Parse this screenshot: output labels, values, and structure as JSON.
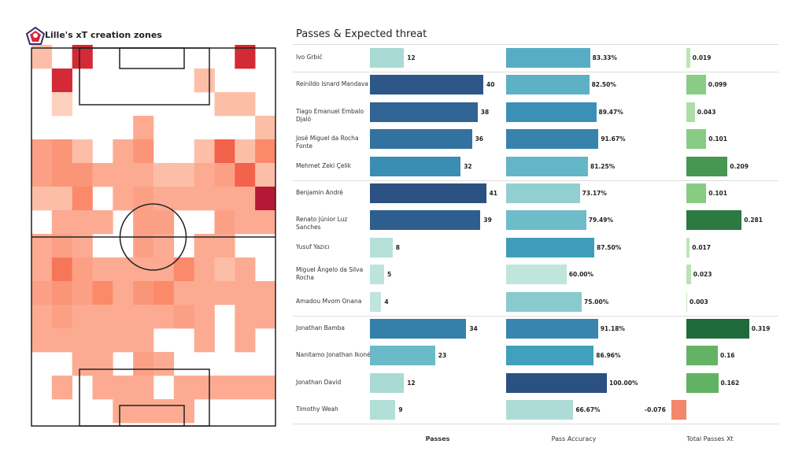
{
  "left_title": "Lille's xT creation zones",
  "right_title": "Passes & Expected threat",
  "columns": {
    "passes": "Passes",
    "accuracy": "Pass Accuracy",
    "xt": "Total Passes Xt"
  },
  "colors": {
    "negative_xt": "#f4876b",
    "pitch_lines": "#222222"
  },
  "chart_data": [
    {
      "type": "heatmap",
      "title": "Lille's xT creation zones",
      "colormap": "Reds",
      "grid_rows": 16,
      "grid_cols": 12,
      "values": [
        [
          0.3,
          0,
          0.85,
          0,
          0,
          0,
          0,
          0,
          0,
          0,
          0.85,
          0
        ],
        [
          0,
          0.85,
          0,
          0,
          0,
          0,
          0,
          0,
          0.3,
          0,
          0,
          0
        ],
        [
          0,
          0.25,
          0,
          0,
          0,
          0,
          0,
          0,
          0,
          0.3,
          0.3,
          0
        ],
        [
          0,
          0,
          0,
          0,
          0,
          0.35,
          0,
          0,
          0,
          0,
          0,
          0.3
        ],
        [
          0.4,
          0.45,
          0.3,
          0,
          0.35,
          0.45,
          0,
          0,
          0.3,
          0.6,
          0.3,
          0.5
        ],
        [
          0.4,
          0.45,
          0.45,
          0.35,
          0.35,
          0.35,
          0.3,
          0.3,
          0.35,
          0.4,
          0.6,
          0.3
        ],
        [
          0.3,
          0.3,
          0.5,
          0,
          0.35,
          0.4,
          0.35,
          0.35,
          0.35,
          0.35,
          0.35,
          0.95
        ],
        [
          0,
          0.35,
          0.35,
          0.35,
          0,
          0.4,
          0.4,
          0,
          0,
          0.4,
          0.35,
          0.35
        ],
        [
          0.35,
          0.4,
          0.35,
          0,
          0,
          0.4,
          0.35,
          0,
          0.35,
          0.35,
          0,
          0
        ],
        [
          0.35,
          0.55,
          0.4,
          0.35,
          0.35,
          0.35,
          0.35,
          0.5,
          0.35,
          0.3,
          0.35,
          0
        ],
        [
          0.4,
          0.45,
          0.4,
          0.5,
          0.35,
          0.45,
          0.5,
          0.35,
          0.35,
          0.35,
          0.35,
          0.35
        ],
        [
          0.35,
          0.4,
          0.35,
          0.35,
          0.35,
          0.35,
          0.35,
          0.4,
          0.35,
          0,
          0.35,
          0.35
        ],
        [
          0.35,
          0.35,
          0.35,
          0.35,
          0.35,
          0.35,
          0,
          0,
          0.35,
          0,
          0.35,
          0
        ],
        [
          0,
          0,
          0.35,
          0.35,
          0,
          0.4,
          0.35,
          0,
          0,
          0,
          0,
          0
        ],
        [
          0,
          0.35,
          0,
          0.35,
          0.35,
          0.35,
          0,
          0.35,
          0.35,
          0.35,
          0.35,
          0.35
        ],
        [
          0,
          0,
          0,
          0,
          0.35,
          0.35,
          0.35,
          0.35,
          0,
          0,
          0,
          0
        ]
      ]
    },
    {
      "type": "bar",
      "orientation": "horizontal",
      "title": "Passes & Expected threat",
      "categories": [
        "Ivo Grbić",
        "Reinildo Isnard Mandava",
        "Tiago Emanuel Embalo Djaló",
        "José Miguel da Rocha Fonte",
        "Mehmet Zeki Çelik",
        "Benjamin André",
        "Renato Júnior Luz Sanches",
        "Yusuf Yazıcı",
        "Miguel Ângelo da Silva Rocha",
        "Amadou Mvom Onana",
        "Jonathan Bamba",
        "Nanitamo Jonathan Ikoné",
        "Jonathan David",
        "Timothy Weah"
      ],
      "group_separators_after": [
        0,
        4,
        9,
        13
      ],
      "series": [
        {
          "name": "Passes",
          "values": [
            12,
            40,
            38,
            36,
            32,
            41,
            39,
            8,
            5,
            4,
            34,
            23,
            12,
            9
          ]
        },
        {
          "name": "Pass Accuracy",
          "values": [
            83.33,
            82.5,
            89.47,
            91.67,
            81.25,
            73.17,
            79.49,
            87.5,
            60.0,
            75.0,
            91.18,
            86.96,
            100.0,
            66.67
          ]
        },
        {
          "name": "Total Passes Xt",
          "values": [
            0.019,
            0.099,
            0.043,
            0.101,
            0.209,
            0.101,
            0.281,
            0.017,
            0.023,
            0.003,
            0.319,
            0.16,
            0.162,
            -0.076
          ]
        }
      ],
      "labels": {
        "passes": [
          "12",
          "40",
          "38",
          "36",
          "32",
          "41",
          "39",
          "8",
          "5",
          "4",
          "34",
          "23",
          "12",
          "9"
        ],
        "accuracy": [
          "83.33%",
          "82.50%",
          "89.47%",
          "91.67%",
          "81.25%",
          "73.17%",
          "79.49%",
          "87.50%",
          "60.00%",
          "75.00%",
          "91.18%",
          "86.96%",
          "100.00%",
          "66.67%"
        ],
        "xt": [
          "0.019",
          "0.099",
          "0.043",
          "0.101",
          "0.209",
          "0.101",
          "0.281",
          "0.017",
          "0.023",
          "0.003",
          "0.319",
          "0.16",
          "0.162",
          "-0.076"
        ]
      }
    }
  ]
}
